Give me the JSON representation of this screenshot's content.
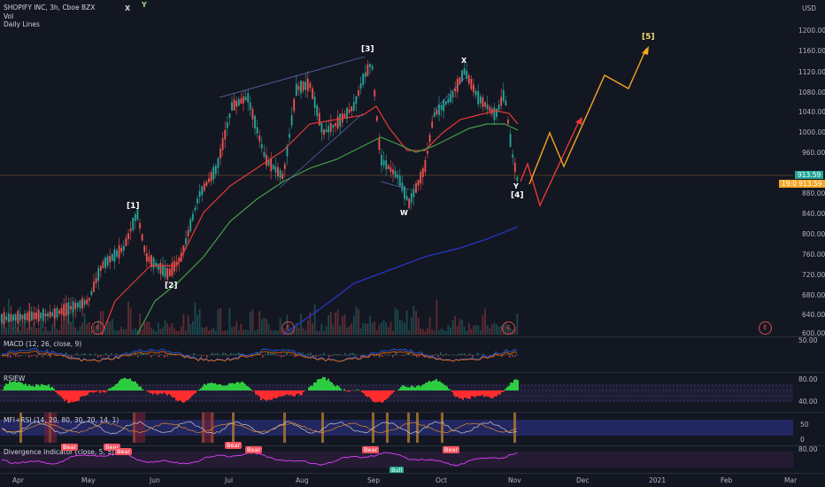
{
  "header": {
    "title": "SHOPIFY INC, 3h, Cboe BZX",
    "line2": "Vol",
    "line3": "Daily Lines",
    "mark_x": "X",
    "mark_y": "Y",
    "currency": "USD"
  },
  "price_axis": [
    "1200.00",
    "1160.00",
    "1120.00",
    "1080.00",
    "1040.00",
    "1000.00",
    "960.00",
    "920.00",
    "880.00",
    "840.00",
    "800.00",
    "760.00",
    "720.00",
    "680.00",
    "640.00",
    "600.00"
  ],
  "price_tags": {
    "last": "913.59",
    "alt": "913.59",
    "alt_prefix": "19:0"
  },
  "wave_labels": {
    "w1": "[1]",
    "w2": "[2]",
    "w3": "[3]",
    "w4": "[4]",
    "w5": "[5]",
    "x": "X",
    "y": "Y",
    "w": "W"
  },
  "earnings_badge": "E",
  "panes": {
    "macd": {
      "title": "MACD (12, 26, close, 9)",
      "axis": [
        "50.00"
      ]
    },
    "rsiew": {
      "title": "RSIEW",
      "axis": [
        "80.00",
        "40.00"
      ]
    },
    "mfi": {
      "title": "MFI+RSI (14, 20, 80, 30, 70, 14, 1)",
      "axis": [
        "50",
        "0"
      ]
    },
    "divergence": {
      "title": "Divergence Indicator (close, 5, 5)",
      "axis": [
        "80.00"
      ],
      "tag_bear": "Bear",
      "tag_bull": "Bull"
    }
  },
  "time_axis": [
    "Apr",
    "May",
    "Jun",
    "Jul",
    "Aug",
    "Sep",
    "Oct",
    "Nov",
    "Dec",
    "2021",
    "Feb",
    "Mar"
  ],
  "colors": {
    "bg": "#131722",
    "up": "#26a69a",
    "down": "#ef5350",
    "ma_red": "#e53935",
    "ma_green": "#43a047",
    "ma_blue": "#2636b8",
    "projection_orange": "#f5a623",
    "projection_red": "#e53935"
  }
}
